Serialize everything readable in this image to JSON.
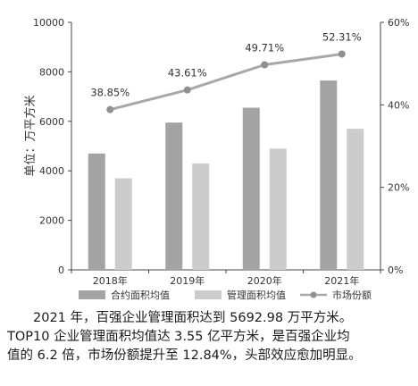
{
  "chart_data": {
    "type": "bar",
    "ylabel": "单位：万平方米",
    "categories": [
      "2018年",
      "2019年",
      "2020年",
      "2021年"
    ],
    "ylim": [
      0,
      10000
    ],
    "y_ticks": [
      0,
      2000,
      4000,
      6000,
      8000,
      10000
    ],
    "y2lim": [
      0,
      60
    ],
    "y2_ticks": [
      "0%",
      "20%",
      "40%",
      "60%"
    ],
    "y2_tick_values": [
      0,
      20,
      40,
      60
    ],
    "series": [
      {
        "name": "合约面积均值",
        "kind": "bar",
        "color": "#a3a3a3",
        "values": [
          4700,
          5950,
          6550,
          7650
        ]
      },
      {
        "name": "管理面积均值",
        "kind": "bar",
        "color": "#cccccc",
        "values": [
          3700,
          4300,
          4900,
          5700
        ]
      },
      {
        "name": "市场份额",
        "kind": "line",
        "axis": "right",
        "color": "#a8a8a8",
        "values": [
          38.85,
          43.61,
          49.71,
          52.31
        ],
        "labels": [
          "38.85%",
          "43.61%",
          "49.71%",
          "52.31%"
        ]
      }
    ],
    "legend_position": "bottom",
    "grid": false
  },
  "caption": [
    "2021 年，百强企业管理面积达到 5692.98 万平方米。",
    "TOP10 企业管理面积均值达 3.55 亿平方米，是百强企业均",
    "值的 6.2 倍，市场份额提升至 12.84%，头部效应愈加明显。"
  ]
}
